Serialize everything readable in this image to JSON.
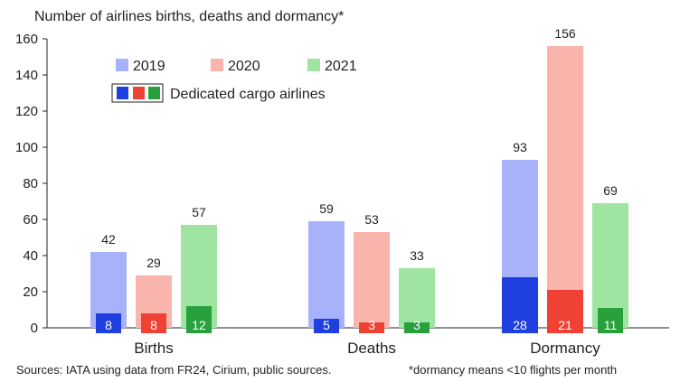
{
  "chart_data": {
    "type": "bar",
    "title": "Number of airlines births, deaths and dormancy*",
    "categories": [
      "Births",
      "Deaths",
      "Dormancy"
    ],
    "ylim": [
      0,
      160
    ],
    "yticks": [
      "0",
      "20",
      "40",
      "60",
      "80",
      "100",
      "120",
      "140",
      "160"
    ],
    "series": [
      {
        "name": "2019",
        "values": [
          42,
          59,
          93
        ],
        "cargo": [
          8,
          5,
          28
        ],
        "color": "#a8b2fb",
        "cargo_color": "#1f3fe0"
      },
      {
        "name": "2020",
        "values": [
          29,
          53,
          156
        ],
        "cargo": [
          8,
          3,
          21
        ],
        "color": "#f9b4ac",
        "cargo_color": "#ef4134"
      },
      {
        "name": "2021",
        "values": [
          57,
          33,
          69
        ],
        "cargo": [
          12,
          3,
          11
        ],
        "color": "#9fe4a1",
        "cargo_color": "#28a03c"
      }
    ],
    "value_labels": [
      [
        "42",
        "59",
        "93"
      ],
      [
        "29",
        "53",
        "156"
      ],
      [
        "57",
        "33",
        "69"
      ]
    ],
    "cargo_labels": [
      [
        "8",
        "5",
        "28"
      ],
      [
        "8",
        "3",
        "21"
      ],
      [
        "12",
        "3",
        "11"
      ]
    ],
    "legend": {
      "series_labels": [
        "2019",
        "2020",
        "2021"
      ],
      "cargo_label": "Dedicated cargo airlines"
    },
    "source_note": "Sources: IATA using data from FR24, Cirium, public sources.",
    "footnote": "*dormancy means <10 flights per month"
  }
}
